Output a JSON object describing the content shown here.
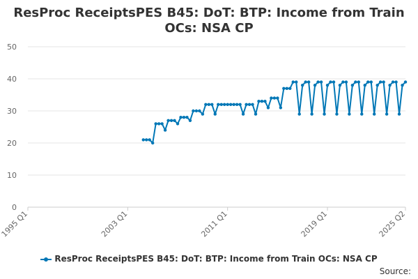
{
  "chart_data": {
    "type": "line",
    "title_lines": [
      "ResProc ReceiptsPES B45: DoT: BTP: Income from Train",
      "OCs: NSA CP"
    ],
    "title": "ResProc ReceiptsPES B45: DoT: BTP: Income from Train OCs: NSA CP",
    "xlabel": "",
    "ylabel": "",
    "ylim": [
      0,
      50
    ],
    "yticks": [
      0,
      10,
      20,
      30,
      40,
      50
    ],
    "xlim": [
      "1995 Q1",
      "2025 Q2"
    ],
    "xticks": [
      "1995 Q1",
      "2003 Q1",
      "2011 Q1",
      "2019 Q1",
      "2025 Q2"
    ],
    "grid": "horizontal",
    "legend_position": "bottom",
    "series": [
      {
        "name": "ResProc ReceiptsPES B45: DoT: BTP: Income from Train OCs: NSA CP",
        "color": "#0077b6",
        "x": [
          "2004 Q2",
          "2004 Q3",
          "2004 Q4",
          "2005 Q1",
          "2005 Q2",
          "2005 Q3",
          "2005 Q4",
          "2006 Q1",
          "2006 Q2",
          "2006 Q3",
          "2006 Q4",
          "2007 Q1",
          "2007 Q2",
          "2007 Q3",
          "2007 Q4",
          "2008 Q1",
          "2008 Q2",
          "2008 Q3",
          "2008 Q4",
          "2009 Q1",
          "2009 Q2",
          "2009 Q3",
          "2009 Q4",
          "2010 Q1",
          "2010 Q2",
          "2010 Q3",
          "2010 Q4",
          "2011 Q1",
          "2011 Q2",
          "2011 Q3",
          "2011 Q4",
          "2012 Q1",
          "2012 Q2",
          "2012 Q3",
          "2012 Q4",
          "2013 Q1",
          "2013 Q2",
          "2013 Q3",
          "2013 Q4",
          "2014 Q1",
          "2014 Q2",
          "2014 Q3",
          "2014 Q4",
          "2015 Q1",
          "2015 Q2",
          "2015 Q3",
          "2015 Q4",
          "2016 Q1",
          "2016 Q2",
          "2016 Q3",
          "2016 Q4",
          "2017 Q1",
          "2017 Q2",
          "2017 Q3",
          "2017 Q4",
          "2018 Q1",
          "2018 Q2",
          "2018 Q3",
          "2018 Q4",
          "2019 Q1",
          "2019 Q2",
          "2019 Q3",
          "2019 Q4",
          "2020 Q1",
          "2020 Q2",
          "2020 Q3",
          "2020 Q4",
          "2021 Q1",
          "2021 Q2",
          "2021 Q3",
          "2021 Q4",
          "2022 Q1",
          "2022 Q2",
          "2022 Q3",
          "2022 Q4",
          "2023 Q1",
          "2023 Q2",
          "2023 Q3",
          "2023 Q4",
          "2024 Q1",
          "2024 Q2",
          "2024 Q3",
          "2024 Q4",
          "2025 Q1",
          "2025 Q2"
        ],
        "values": [
          21,
          21,
          21,
          20,
          26,
          26,
          26,
          24,
          27,
          27,
          27,
          26,
          28,
          28,
          28,
          27,
          30,
          30,
          30,
          29,
          32,
          32,
          32,
          29,
          32,
          32,
          32,
          32,
          32,
          32,
          32,
          32,
          29,
          32,
          32,
          32,
          29,
          33,
          33,
          33,
          31,
          34,
          34,
          34,
          31,
          37,
          37,
          37,
          39,
          39,
          29,
          38,
          39,
          39,
          29,
          38,
          39,
          39,
          29,
          38,
          39,
          39,
          29,
          38,
          39,
          39,
          29,
          38,
          39,
          39,
          29,
          38,
          39,
          39,
          29,
          38,
          39,
          39,
          29,
          38,
          39,
          39,
          29,
          38,
          39
        ]
      }
    ]
  },
  "legend": {
    "label": "ResProc ReceiptsPES B45: DoT: BTP: Income from Train OCs: NSA CP"
  },
  "footer": {
    "source_label": "Source:"
  }
}
